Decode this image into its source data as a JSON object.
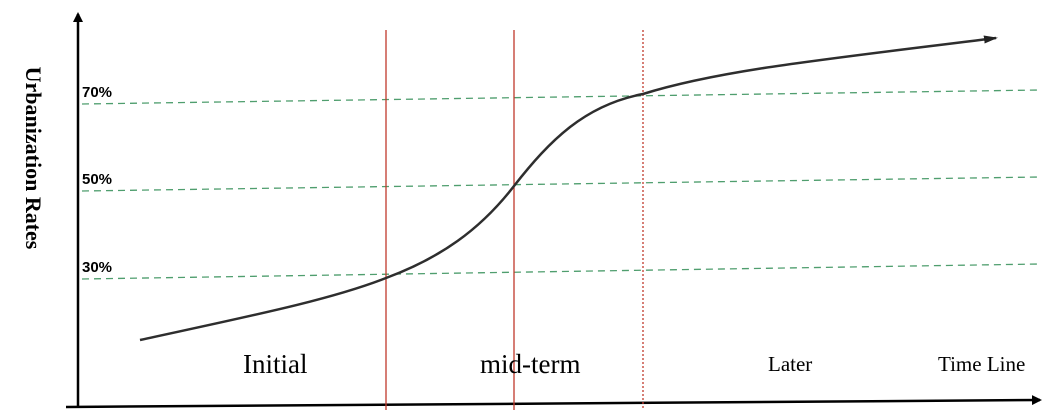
{
  "y_axis_label": "Urbanization Rates",
  "x_axis_label": "Time Line",
  "thresholds": [
    {
      "label": "70%",
      "value": 70
    },
    {
      "label": "50%",
      "value": 50
    },
    {
      "label": "30%",
      "value": 30
    }
  ],
  "stages": [
    {
      "label": "Initial"
    },
    {
      "label": "mid-term"
    },
    {
      "label": "Later"
    }
  ],
  "colors": {
    "curve": "#333333",
    "threshold_lines": "#4f9e6e",
    "stage_dividers": "#c0392b",
    "axes": "#000000"
  }
}
